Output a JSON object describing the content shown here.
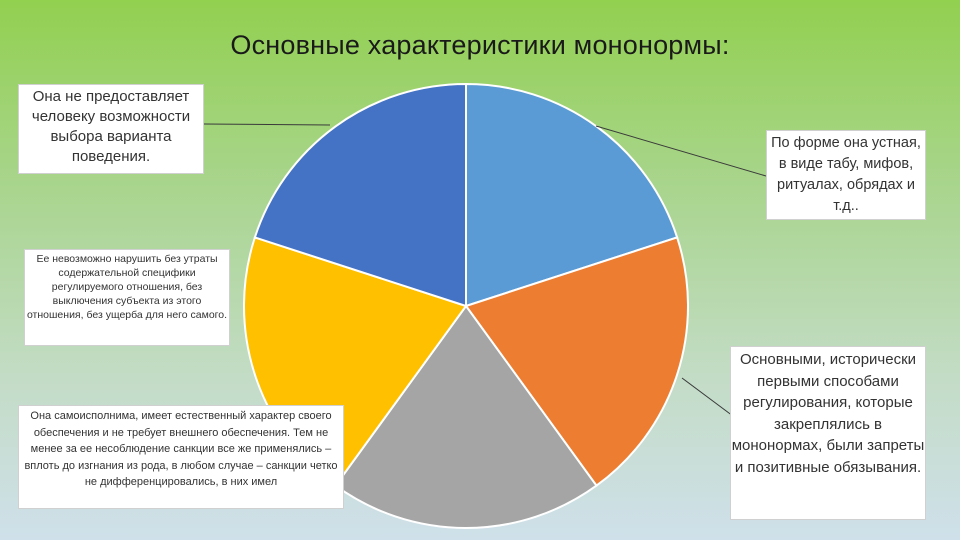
{
  "title": "Основные характеристики мононормы:",
  "chart_data": {
    "type": "pie",
    "values": [
      1,
      1,
      1,
      1,
      1
    ],
    "colors": [
      "#5b9bd5",
      "#ed7d31",
      "#a5a5a5",
      "#ffc000",
      "#4472c4"
    ]
  },
  "callouts": {
    "no_choice": "Она не предоставляет человеку возможности выбора варианта поведения.",
    "oral_form": "По форме она устная, в виде табу, мифов, ритуалах, обрядах и т.д..",
    "cannot_violate": "Ее невозможно нарушить без утраты содержательной специфики регулируемого отношения, без выключения субъекта из этого отношения, без ущерба для него самого.",
    "self_executing": "Она самоисполнима, имеет естественный характер своего обеспечения и не требует внешнего обеспечения. Тем не менее за ее несоблюдение санкции все же применялись – вплоть до изгнания из рода, в любом случае – санкции четко не дифференцировались, в них имел",
    "first_methods": "Основными, исторически первыми способами регулирования, которые закреплялись в мононормах, были запреты и позитивные обязывания."
  }
}
